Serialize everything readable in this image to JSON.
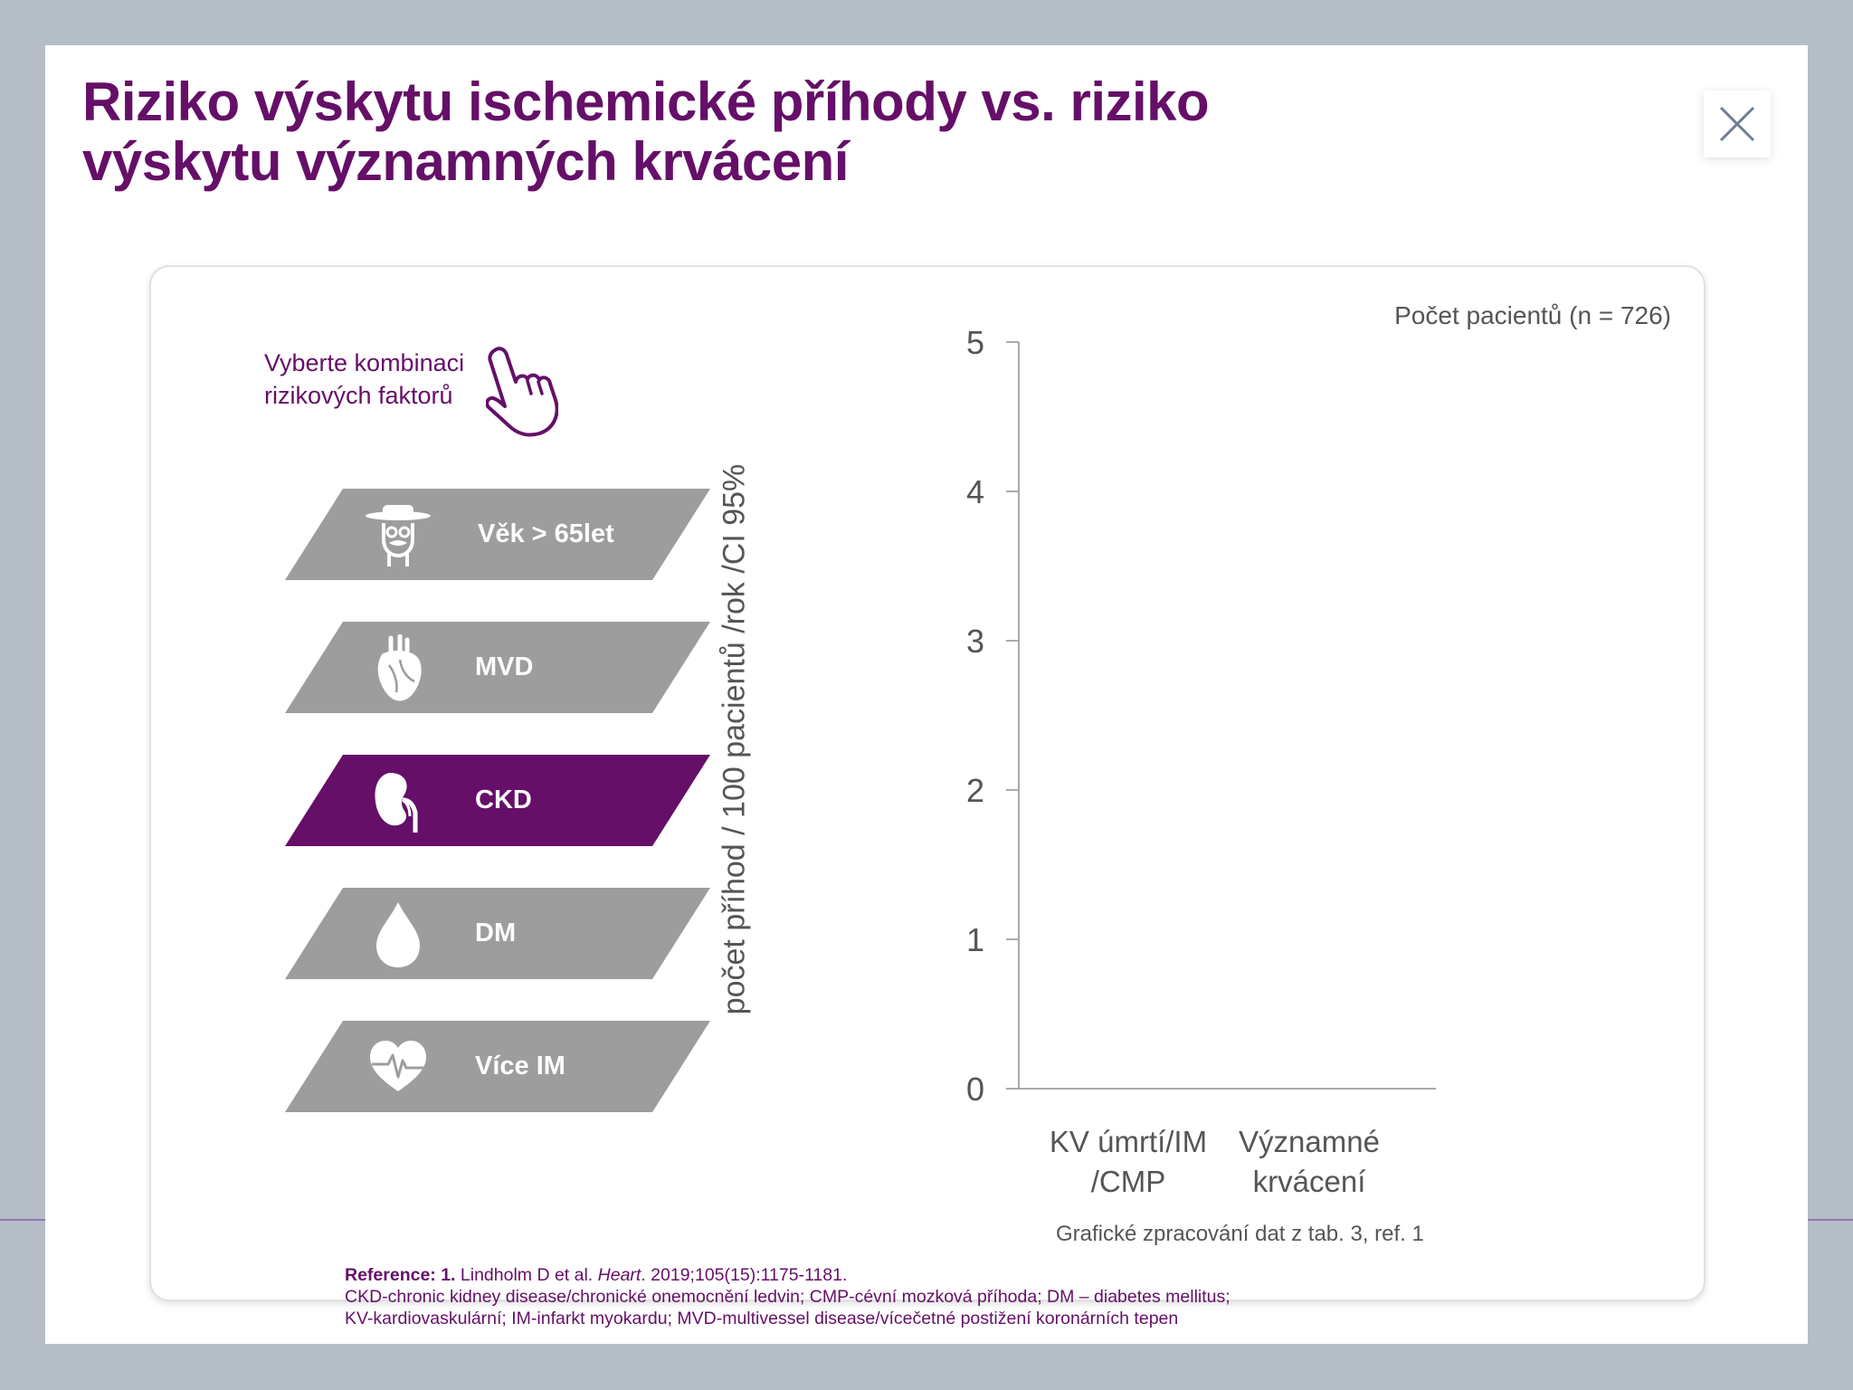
{
  "page": {
    "title": "Riziko výskytu ischemické příhody vs. riziko výskytu významných krvácení"
  },
  "instruction": {
    "text": "Vyberte kombinaci rizikových faktorů"
  },
  "factors": [
    {
      "label": "Věk > 65let",
      "icon": "elderly-man-icon",
      "selected": false
    },
    {
      "label": "MVD",
      "icon": "heart-anatomy-icon",
      "selected": false
    },
    {
      "label": "CKD",
      "icon": "kidney-icon",
      "selected": true
    },
    {
      "label": "DM",
      "icon": "drop-icon",
      "selected": false
    },
    {
      "label": "Více IM",
      "icon": "heart-pulse-icon",
      "selected": false
    }
  ],
  "chart": {
    "patients_label": "Počet pacientů (n = 726)",
    "source_note": "Grafické zpracování dat z tab. 3, ref. 1"
  },
  "chart_data": {
    "type": "bar",
    "categories": [
      "KV úmrtí/IM /CMP",
      "Významné krvácení"
    ],
    "series": [],
    "ylabel": "počet příhod / 100 pacientů /rok  /CI 95%",
    "xlabel": "",
    "ylim": [
      0,
      5
    ],
    "yticks": [
      0,
      1,
      2,
      3,
      4,
      5
    ],
    "grid": false,
    "legend": "none"
  },
  "references": {
    "ref_prefix": "Reference: 1.",
    "ref_authors": " Lindholm D et al. ",
    "ref_journal": "Heart",
    "ref_rest": ". 2019;105(15):1175-1181.",
    "abbrev_line1": "CKD-chronic kidney disease/chronické onemocnění ledvin; CMP-cévní mozková příhoda; DM – diabetes mellitus;",
    "abbrev_line2": "KV-kardiovaskulární; IM-infarkt myokardu; MVD-multivessel disease/vícečetné postižení koronárních tepen"
  },
  "colors": {
    "brand": "#650f68",
    "factor_inactive": "#9d9d9d",
    "backdrop": "#b5bec7"
  }
}
